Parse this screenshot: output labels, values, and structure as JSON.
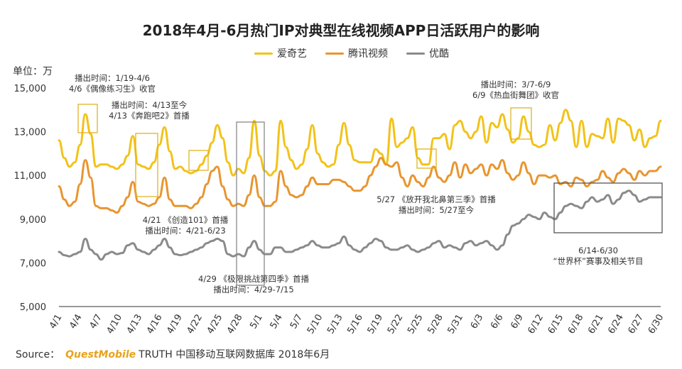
{
  "chart_data": {
    "type": "line",
    "title": "2018年4月-6月热门IP对典型在线视频APP日活跃用户的影响",
    "ylabel": "单位：万",
    "xlabel": "",
    "ylim": [
      5000,
      15000
    ],
    "yticks": [
      5000,
      7000,
      9000,
      11000,
      13000,
      15000
    ],
    "ytick_labels": [
      "5,000",
      "7,000",
      "9,000",
      "11,000",
      "13,000",
      "15,000"
    ],
    "grid": false,
    "legend_position": "top-center",
    "x_tick_labels": [
      "4/1",
      "4/4",
      "4/7",
      "4/10",
      "4/13",
      "4/16",
      "4/19",
      "4/22",
      "4/25",
      "4/28",
      "5/1",
      "5/4",
      "5/7",
      "5/10",
      "5/13",
      "5/16",
      "5/19",
      "5/22",
      "5/25",
      "5/28",
      "5/31",
      "6/3",
      "6/6",
      "6/9",
      "6/12",
      "6/15",
      "6/18",
      "6/21",
      "6/24",
      "6/27",
      "6/30"
    ],
    "series": [
      {
        "name": "爱奇艺",
        "color": "#f2c218",
        "values": [
          12600,
          11800,
          11400,
          11600,
          12400,
          13800,
          12900,
          11400,
          11500,
          11500,
          11400,
          11300,
          11500,
          11900,
          12800,
          11500,
          11400,
          11300,
          11600,
          12400,
          13200,
          12100,
          11300,
          11400,
          11200,
          11100,
          11200,
          11500,
          11900,
          12500,
          13300,
          12700,
          11600,
          11000,
          11300,
          11100,
          11800,
          13500,
          11900,
          11200,
          11000,
          11200,
          13500,
          12300,
          11700,
          11300,
          11500,
          12200,
          13300,
          12000,
          11600,
          11400,
          11500,
          12400,
          13400,
          12400,
          11700,
          11600,
          11600,
          11600,
          12200,
          12000,
          11500,
          13600,
          12300,
          12500,
          12700,
          13200,
          11800,
          11500,
          11500,
          12700,
          12700,
          12900,
          12200,
          13300,
          13500,
          13000,
          12700,
          13000,
          13700,
          12500,
          13400,
          13200,
          13800,
          13100,
          12500,
          12700,
          13700,
          13000,
          12400,
          12300,
          12400,
          13300,
          12600,
          13400,
          14000,
          13500,
          12300,
          13500,
          12300,
          12900,
          12800,
          12700,
          13600,
          12500,
          13600,
          13500,
          13300,
          12600,
          13100,
          12300,
          12700,
          12800,
          13500
        ]
      },
      {
        "name": "腾讯视频",
        "color": "#e8952f",
        "values": [
          10500,
          9900,
          9600,
          9800,
          10600,
          11700,
          10900,
          9600,
          9500,
          9500,
          9400,
          9300,
          9600,
          10000,
          10700,
          9800,
          9700,
          9600,
          9700,
          10000,
          10900,
          9900,
          9600,
          9600,
          9600,
          9500,
          9700,
          10000,
          10600,
          11200,
          11400,
          10500,
          9900,
          9600,
          9700,
          9600,
          10100,
          11000,
          10000,
          9600,
          9600,
          9800,
          11200,
          10500,
          10100,
          10000,
          10100,
          10500,
          10900,
          10600,
          10600,
          10600,
          10800,
          10800,
          10700,
          10500,
          10300,
          10300,
          10500,
          11000,
          11400,
          11800,
          11500,
          11400,
          11600,
          10900,
          10500,
          11000,
          10700,
          10500,
          10900,
          11400,
          10900,
          10700,
          11000,
          11600,
          10900,
          11500,
          11100,
          11300,
          11500,
          11000,
          11500,
          11300,
          11700,
          11100,
          10800,
          11000,
          11600,
          11100,
          10600,
          11000,
          11000,
          10900,
          11000,
          10600,
          10700,
          10500,
          10900,
          10800,
          10500,
          10700,
          10800,
          11200,
          10900,
          10700,
          11100,
          11300,
          11100,
          10800,
          11200,
          11000,
          11200,
          11200,
          11400
        ]
      },
      {
        "name": "优酷",
        "color": "#8a8a8a",
        "values": [
          7500,
          7350,
          7300,
          7400,
          7500,
          8100,
          7600,
          7400,
          7150,
          7400,
          7500,
          7400,
          7450,
          7800,
          7900,
          7600,
          7500,
          7400,
          7600,
          7800,
          8100,
          7700,
          7400,
          7350,
          7400,
          7500,
          7600,
          7700,
          7900,
          8000,
          8100,
          8000,
          7400,
          7300,
          7400,
          7300,
          7700,
          8000,
          7600,
          7400,
          7400,
          7700,
          7700,
          7500,
          7500,
          7600,
          7700,
          7800,
          8000,
          7800,
          7700,
          7700,
          7800,
          7900,
          8200,
          7800,
          7600,
          7500,
          7700,
          7900,
          8100,
          8000,
          7700,
          7600,
          7600,
          7700,
          7800,
          7600,
          7500,
          7600,
          7700,
          7900,
          8000,
          7700,
          7800,
          7700,
          7600,
          7900,
          8000,
          7800,
          7900,
          8000,
          7800,
          7600,
          7800,
          8300,
          8700,
          8800,
          9000,
          9200,
          9100,
          9000,
          9300,
          9100,
          9000,
          9300,
          9600,
          9700,
          9600,
          9500,
          9800,
          10000,
          9800,
          9900,
          10100,
          9700,
          9900,
          10200,
          10300,
          10100,
          9800,
          9900,
          10000,
          10000,
          10000
        ]
      }
    ],
    "annotations": [
      {
        "lines": [
          "播出时间：1/19-4/6",
          "4/6《偶像练习生》收官"
        ]
      },
      {
        "lines": [
          "播出时间：4/13至今",
          "4/13《奔跑吧2》首播"
        ]
      },
      {
        "lines": [
          "4/21 《创造101》首播",
          "播出时间：4/21-6/23"
        ]
      },
      {
        "lines": [
          "4/29 《极限挑战第四季》首播",
          "播出时间：4/29-7/15"
        ]
      },
      {
        "lines": [
          "5/27 《放开我北鼻第三季》首播",
          "播出时间：5/27至今"
        ]
      },
      {
        "lines": [
          "播出时间：3/7-6/9",
          "6/9《热血街舞团》收官"
        ]
      },
      {
        "lines": [
          "6/14-6/30",
          "“世界杯”赛事及相关节目"
        ]
      }
    ]
  },
  "source": {
    "prefix": "Source：",
    "brand": "QuestMobile",
    "text": "TRUTH 中国移动互联网数据库 2018年6月"
  }
}
